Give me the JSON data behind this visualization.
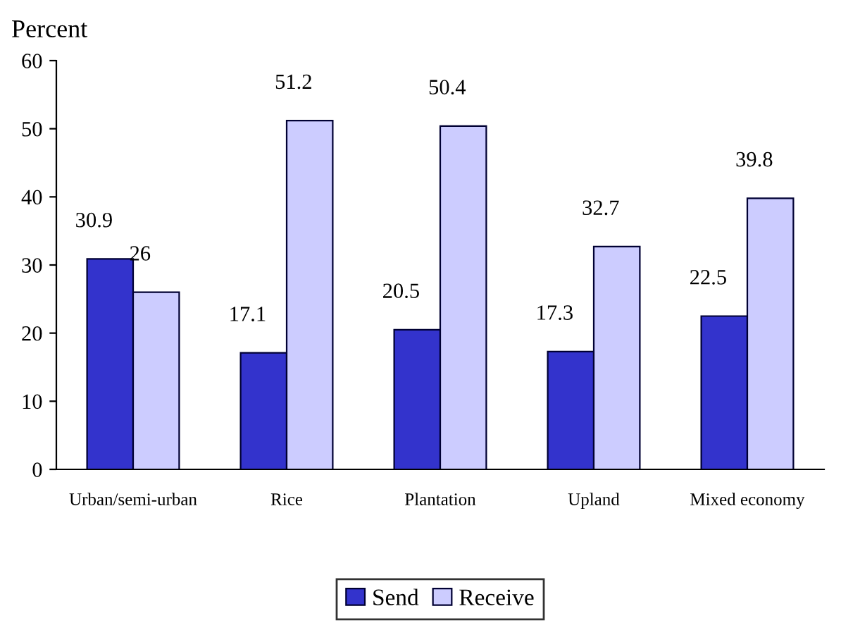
{
  "chart_data": {
    "type": "bar",
    "ylabel": "Percent",
    "categories": [
      "Urban/semi-urban",
      "Rice",
      "Plantation",
      "Upland",
      "Mixed economy"
    ],
    "series": [
      {
        "name": "Send",
        "color": "#3333cc",
        "values": [
          30.9,
          17.1,
          20.5,
          17.3,
          22.5
        ]
      },
      {
        "name": "Receive",
        "color": "#ccccff",
        "values": [
          26,
          51.2,
          50.4,
          32.7,
          39.8
        ]
      }
    ],
    "ylim": [
      0,
      60
    ],
    "yticks": [
      0,
      10,
      20,
      30,
      40,
      50,
      60
    ],
    "grid": false,
    "legend": "bottom",
    "data_labels": true
  }
}
